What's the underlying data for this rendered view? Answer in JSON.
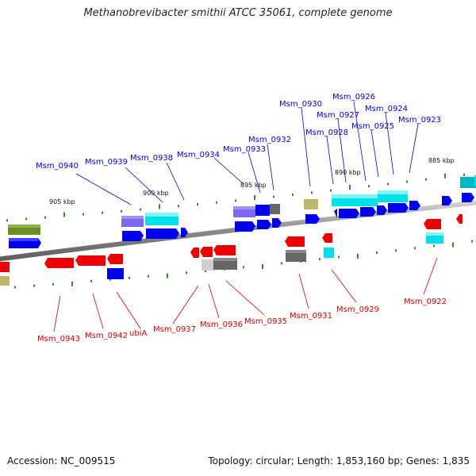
{
  "title": "Methanobrevibacter smithii ATCC 35061, complete genome",
  "footer": {
    "accession": "Accession: NC_009515",
    "topology": "Topology: circular; Length: 1,853,160 bp; Genes: 1,835"
  },
  "scale_marks": [
    {
      "label": "905 kbp"
    },
    {
      "label": "900 kbp"
    },
    {
      "label": "895 kbp"
    },
    {
      "label": "890 kbp"
    },
    {
      "label": "885 kbp"
    }
  ],
  "top_strand_labels": [
    "Msm_0940",
    "Msm_0939",
    "Msm_0938",
    "Msm_0934",
    "Msm_0933",
    "Msm_0932",
    "Msm_0930",
    "Msm_0928",
    "Msm_0927",
    "Msm_0926",
    "Msm_0925",
    "Msm_0924",
    "Msm_0923"
  ],
  "bottom_strand_labels": [
    "Msm_0943",
    "Msm_0942",
    "ubiA",
    "Msm_0937",
    "Msm_0936",
    "Msm_0935",
    "Msm_0931",
    "Msm_0929",
    "Msm_0922"
  ],
  "colors": {
    "forward_cds": "#0000ee",
    "reverse_cds": "#ee0000",
    "cyan_feature": "#00e0e8",
    "olive_feature": "#6b8e23",
    "purple_feature": "#7b68ee",
    "gray_feature": "#666666",
    "khaki_feature": "#bdb76b",
    "backbone": "#888888",
    "tick": "#2e8b2e",
    "top_label": "#0000cc",
    "bottom_label": "#cc0000"
  }
}
